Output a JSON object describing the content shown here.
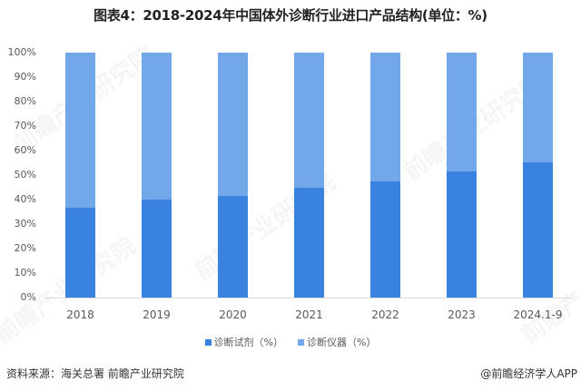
{
  "title": "图表4：2018-2024年中国体外诊断行业进口产品结构(单位：%)",
  "chart_data": {
    "type": "bar",
    "stacked": true,
    "title": "图表4：2018-2024年中国体外诊断行业进口产品结构(单位：%)",
    "xlabel": "",
    "ylabel": "",
    "ylim": [
      0,
      100
    ],
    "yticks": [
      "0%",
      "10%",
      "20%",
      "30%",
      "40%",
      "50%",
      "60%",
      "70%",
      "80%",
      "90%",
      "100%"
    ],
    "categories": [
      "2018",
      "2019",
      "2020",
      "2021",
      "2022",
      "2023",
      "2024.1-9"
    ],
    "series": [
      {
        "name": "诊断试剂（%）",
        "color": "#3a82e0",
        "values": [
          36.5,
          40.0,
          41.5,
          44.7,
          47.4,
          51.4,
          55.3
        ]
      },
      {
        "name": "诊断仪器（%）",
        "color": "#72a7ea",
        "values": [
          63.5,
          60.0,
          58.5,
          55.3,
          52.6,
          48.6,
          44.7
        ]
      }
    ],
    "grid": false,
    "legend_position": "bottom"
  },
  "legend": [
    {
      "label": "诊断试剂（%）",
      "color": "#3a82e0"
    },
    {
      "label": "诊断仪器（%）",
      "color": "#72a7ea"
    }
  ],
  "footer": {
    "source": "资料来源：海关总署 前瞻产业研究院",
    "credit": "@前瞻经济学人APP"
  },
  "watermark": "前瞻产业研究院"
}
